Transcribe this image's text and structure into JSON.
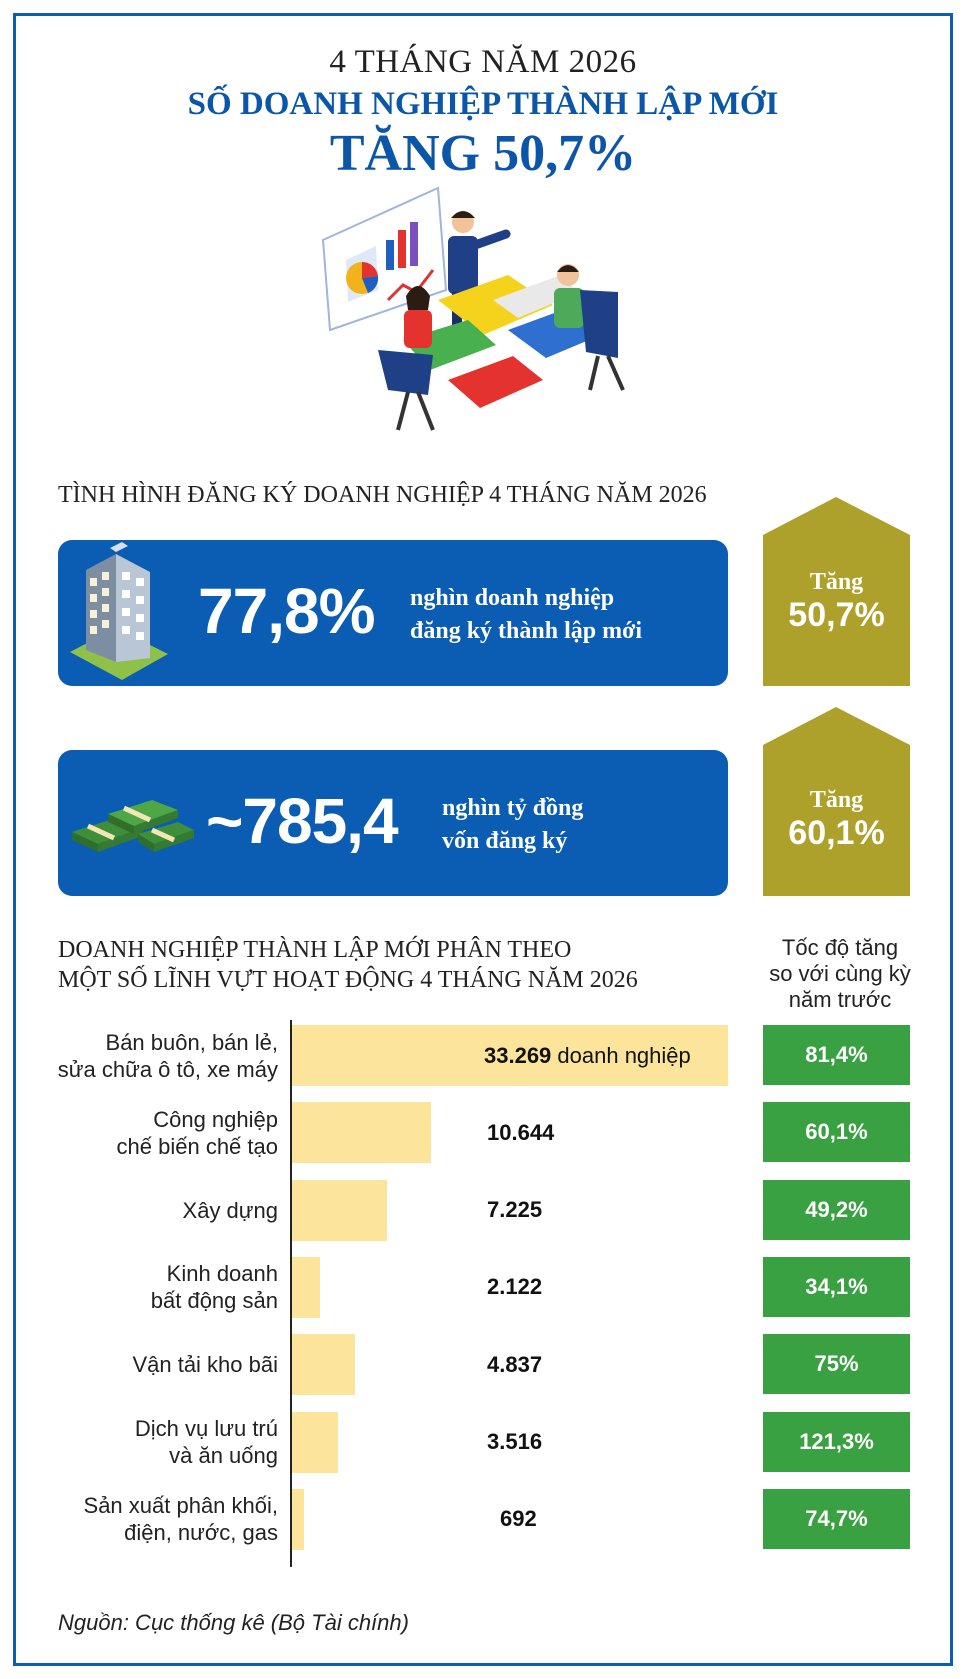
{
  "header": {
    "line1": "4 THÁNG NĂM 2026",
    "line2": "SỐ DOANH NGHIỆP THÀNH LẬP MỚI",
    "line3": "TĂNG 50,7%"
  },
  "section1": {
    "title": "TÌNH HÌNH ĐĂNG KÝ DOANH NGHIỆP 4 THÁNG NĂM 2026",
    "stats": [
      {
        "value": "77,8%",
        "desc_line1": "nghìn doanh nghiệp",
        "desc_line2": "đăng ký thành lập mới",
        "growth_label": "Tăng",
        "growth_value": "50,7%",
        "icon": "building-icon"
      },
      {
        "value": "~785,4",
        "desc_line1": "nghìn tỷ đồng",
        "desc_line2": "vốn đăng ký",
        "growth_label": "Tăng",
        "growth_value": "60,1%",
        "icon": "money-stack-icon"
      }
    ]
  },
  "section2": {
    "title_line1": "DOANH NGHIỆP THÀNH LẬP MỚI PHÂN THEO",
    "title_line2": "MỘT SỐ LĨNH VỰT HOẠT ĐỘNG 4 THÁNG NĂM 2026",
    "right_header": [
      "Tốc độ tăng",
      "so với cùng kỳ",
      "năm trước"
    ]
  },
  "chart_data": {
    "type": "bar",
    "orientation": "horizontal",
    "categories": [
      [
        "Bán buôn, bán lẻ,",
        "sửa chữa ô tô, xe máy"
      ],
      [
        "Công nghiệp",
        "chế biến chế tạo"
      ],
      [
        "Xây dựng"
      ],
      [
        "Kinh doanh",
        "bất động sản"
      ],
      [
        "Vận tải kho bãi"
      ],
      [
        "Dịch vụ lưu trú",
        "và ăn uống"
      ],
      [
        "Sản xuất phân khối,",
        "điện, nước, gas"
      ]
    ],
    "values": [
      33269,
      10644,
      7225,
      2122,
      4837,
      3516,
      692
    ],
    "value_labels": [
      "33.269",
      "10.644",
      "7.225",
      "2.122",
      "4.837",
      "3.516",
      "692"
    ],
    "unit_label": "doanh nghiệp",
    "growth_labels": [
      "81,4%",
      "60,1%",
      "49,2%",
      "34,1%",
      "75%",
      "121,3%",
      "74,7%"
    ],
    "growth": [
      81.4,
      60.1,
      49.2,
      34.1,
      75,
      121.3,
      74.7
    ]
  },
  "colors": {
    "blue": "#0b5cb3",
    "olive": "#ada02b",
    "bar": "#fce59a",
    "green": "#3aa143"
  },
  "source": "Nguồn: Cục thống kê (Bộ Tài chính)"
}
